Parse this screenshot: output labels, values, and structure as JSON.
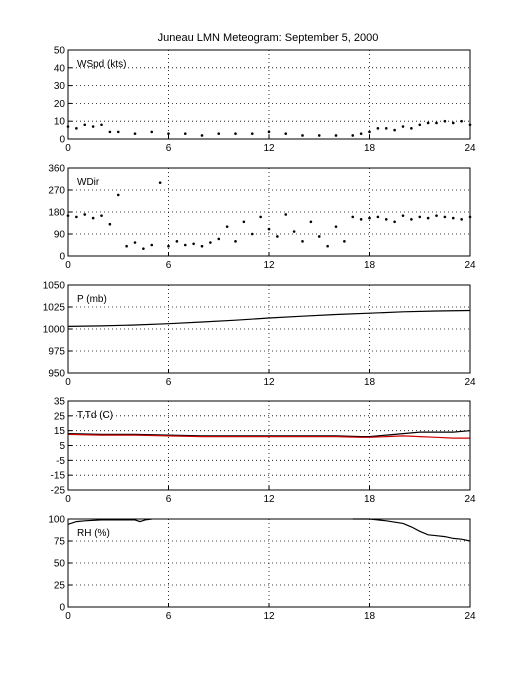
{
  "title": "Juneau LMN Meteogram: September  5, 2000",
  "colors": {
    "axes": "#000000",
    "grid": "#000000",
    "data_black": "#000000",
    "data_red": "#cc0000",
    "background": "#ffffff"
  },
  "chart_data": [
    {
      "type": "scatter",
      "label": "WSpd (kts)",
      "ylim": [
        0,
        50
      ],
      "yticks": [
        0,
        10,
        20,
        30,
        40,
        50
      ],
      "xlim": [
        0,
        24
      ],
      "xticks": [
        0,
        6,
        12,
        18,
        24
      ],
      "grid": true,
      "series": [
        {
          "color": "black",
          "x": [
            0,
            0.5,
            1,
            1.5,
            2,
            2.5,
            3,
            4,
            5,
            6,
            7,
            8,
            9,
            10,
            11,
            12,
            13,
            14,
            15,
            16,
            17,
            17.5,
            18,
            18.5,
            19,
            19.5,
            20,
            20.5,
            21,
            21.5,
            22,
            22.5,
            23,
            23.5,
            24
          ],
          "y": [
            7,
            6,
            8,
            7,
            8,
            4,
            4,
            3,
            4,
            3,
            3,
            2,
            3,
            3,
            3,
            4,
            3,
            2,
            2,
            2,
            2,
            3,
            4,
            6,
            6,
            5,
            7,
            6,
            8,
            9,
            9,
            10,
            9,
            10,
            8
          ]
        }
      ]
    },
    {
      "type": "scatter",
      "label": "WDir",
      "ylim": [
        0,
        360
      ],
      "yticks": [
        0,
        90,
        180,
        270,
        360
      ],
      "xlim": [
        0,
        24
      ],
      "xticks": [
        0,
        6,
        12,
        18,
        24
      ],
      "grid": true,
      "series": [
        {
          "color": "black",
          "x": [
            0,
            0.5,
            1,
            1.5,
            2,
            2.5,
            3,
            3.5,
            4,
            4.5,
            5,
            5.5,
            6,
            6.5,
            7,
            7.5,
            8,
            8.5,
            9,
            9.5,
            10,
            10.5,
            11,
            11.5,
            12,
            12.5,
            13,
            13.5,
            14,
            14.5,
            15,
            15.5,
            16,
            16.5,
            17,
            17.5,
            18,
            18.5,
            19,
            19.5,
            20,
            20.5,
            21,
            21.5,
            22,
            22.5,
            23,
            23.5,
            24
          ],
          "y": [
            165,
            160,
            170,
            155,
            165,
            130,
            250,
            40,
            55,
            30,
            45,
            300,
            40,
            60,
            45,
            50,
            40,
            55,
            70,
            120,
            60,
            140,
            90,
            160,
            110,
            80,
            170,
            100,
            60,
            140,
            80,
            40,
            120,
            60,
            160,
            150,
            155,
            160,
            150,
            140,
            165,
            150,
            160,
            155,
            165,
            160,
            155,
            150,
            160
          ]
        }
      ]
    },
    {
      "type": "line",
      "label": "P (mb)",
      "ylim": [
        950,
        1050
      ],
      "yticks": [
        950,
        975,
        1000,
        1025,
        1050
      ],
      "xlim": [
        0,
        24
      ],
      "xticks": [
        0,
        6,
        12,
        18,
        24
      ],
      "grid": true,
      "series": [
        {
          "color": "black",
          "x": [
            0,
            2,
            4,
            6,
            8,
            10,
            12,
            14,
            16,
            18,
            20,
            22,
            24
          ],
          "y": [
            1003,
            1003.5,
            1004.5,
            1006,
            1008,
            1010,
            1012.5,
            1014.5,
            1016.5,
            1018,
            1019.5,
            1020.5,
            1021
          ]
        }
      ]
    },
    {
      "type": "line",
      "label": "T,Td (C)",
      "ylim": [
        -25,
        35
      ],
      "yticks": [
        -25,
        -15,
        -5,
        5,
        15,
        25,
        35
      ],
      "xlim": [
        0,
        24
      ],
      "xticks": [
        0,
        6,
        12,
        18,
        24
      ],
      "grid": true,
      "series": [
        {
          "color": "black",
          "x": [
            0,
            2,
            4,
            6,
            8,
            10,
            12,
            14,
            16,
            17.5,
            18,
            19,
            20,
            21,
            22,
            23,
            24
          ],
          "y": [
            13,
            12.5,
            12.5,
            12,
            11.5,
            11.5,
            11.5,
            11.5,
            11.5,
            11,
            11,
            12,
            13,
            14,
            14,
            14,
            15
          ]
        },
        {
          "color": "red",
          "x": [
            0,
            2,
            4,
            6,
            8,
            10,
            12,
            14,
            16,
            17.5,
            18,
            19,
            20,
            21,
            22,
            23,
            24
          ],
          "y": [
            12.5,
            12,
            12,
            11.5,
            11,
            11,
            11,
            11,
            11,
            10.5,
            10.5,
            11,
            11.5,
            11,
            10.5,
            10,
            10
          ]
        }
      ]
    },
    {
      "type": "line",
      "label": "RH (%)",
      "ylim": [
        0,
        100
      ],
      "yticks": [
        0,
        25,
        50,
        75,
        100
      ],
      "xlim": [
        0,
        24
      ],
      "xticks": [
        0,
        6,
        12,
        18,
        24
      ],
      "grid": true,
      "series": [
        {
          "color": "black",
          "x": [
            0,
            0.5,
            1,
            2,
            3,
            4,
            4.3,
            4.6,
            5
          ],
          "y": [
            94,
            97,
            98,
            99,
            99,
            99,
            97,
            99,
            100
          ]
        },
        {
          "color": "black",
          "x": [
            17,
            17.5,
            18,
            18.5,
            19,
            20,
            20.5,
            21,
            21.5,
            22,
            22.5,
            23,
            23.5,
            24
          ],
          "y": [
            100,
            100,
            100,
            99,
            98,
            95,
            91,
            86,
            82,
            81,
            80,
            78,
            77,
            75
          ]
        }
      ]
    }
  ]
}
